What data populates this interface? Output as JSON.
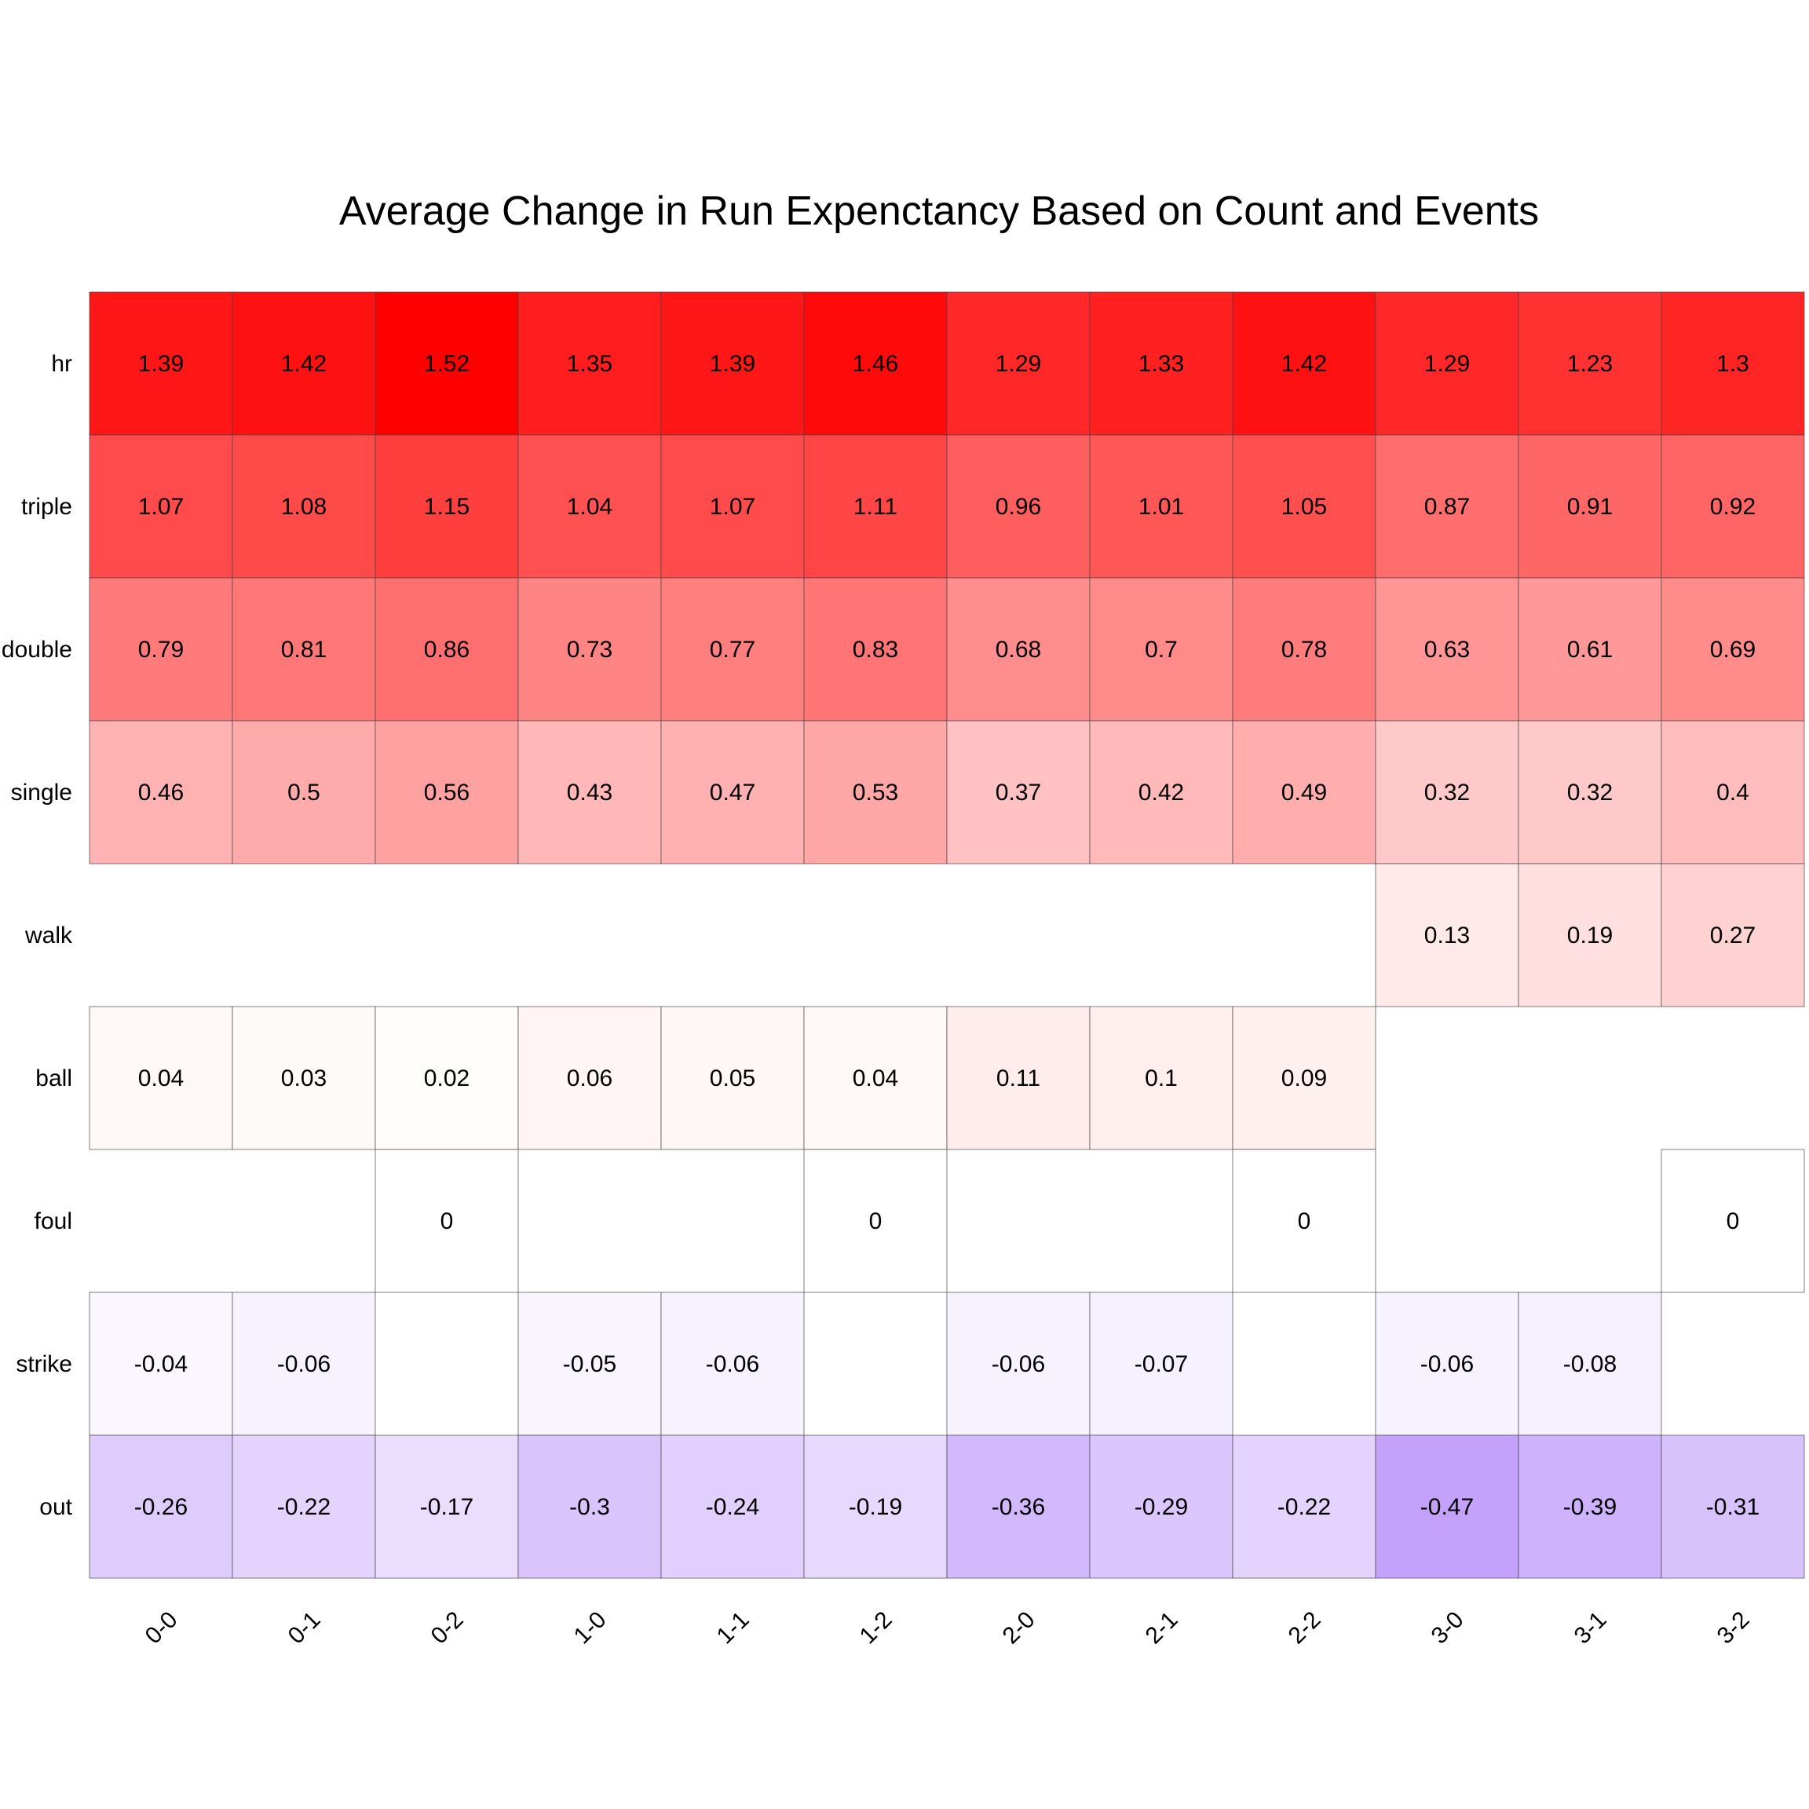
{
  "chart_data": {
    "type": "heatmap",
    "title": "Average Change in Run Expenctancy Based on Count and Events",
    "xlabel": "",
    "ylabel": "",
    "x_categories": [
      "0-0",
      "0-1",
      "0-2",
      "1-0",
      "1-1",
      "1-2",
      "2-0",
      "2-1",
      "2-2",
      "3-0",
      "3-1",
      "3-2"
    ],
    "y_categories": [
      "hr",
      "triple",
      "double",
      "single",
      "walk",
      "ball",
      "foul",
      "strike",
      "out"
    ],
    "values": [
      [
        1.39,
        1.42,
        1.52,
        1.35,
        1.39,
        1.46,
        1.29,
        1.33,
        1.42,
        1.29,
        1.23,
        1.3
      ],
      [
        1.07,
        1.08,
        1.15,
        1.04,
        1.07,
        1.11,
        0.96,
        1.01,
        1.05,
        0.87,
        0.91,
        0.92
      ],
      [
        0.79,
        0.81,
        0.86,
        0.73,
        0.77,
        0.83,
        0.68,
        0.7,
        0.78,
        0.63,
        0.61,
        0.69
      ],
      [
        0.46,
        0.5,
        0.56,
        0.43,
        0.47,
        0.53,
        0.37,
        0.42,
        0.49,
        0.32,
        0.32,
        0.4
      ],
      [
        null,
        null,
        null,
        null,
        null,
        null,
        null,
        null,
        null,
        0.13,
        0.19,
        0.27
      ],
      [
        0.04,
        0.03,
        0.02,
        0.06,
        0.05,
        0.04,
        0.11,
        0.1,
        0.09,
        null,
        null,
        null
      ],
      [
        null,
        null,
        0,
        null,
        null,
        0,
        null,
        null,
        0,
        null,
        null,
        0
      ],
      [
        -0.04,
        -0.06,
        null,
        -0.05,
        -0.06,
        null,
        -0.06,
        -0.07,
        null,
        -0.06,
        -0.08,
        null
      ],
      [
        -0.26,
        -0.22,
        -0.17,
        -0.3,
        -0.24,
        -0.19,
        -0.36,
        -0.29,
        -0.22,
        -0.47,
        -0.39,
        -0.31
      ]
    ],
    "color_scale": {
      "positive_max": 1.52,
      "negative_min": -0.47,
      "positive_color": "#ff0000",
      "negative_color": "#c4a2fb",
      "zero_color": "#ffffff"
    },
    "legend": "none",
    "grid": false
  }
}
